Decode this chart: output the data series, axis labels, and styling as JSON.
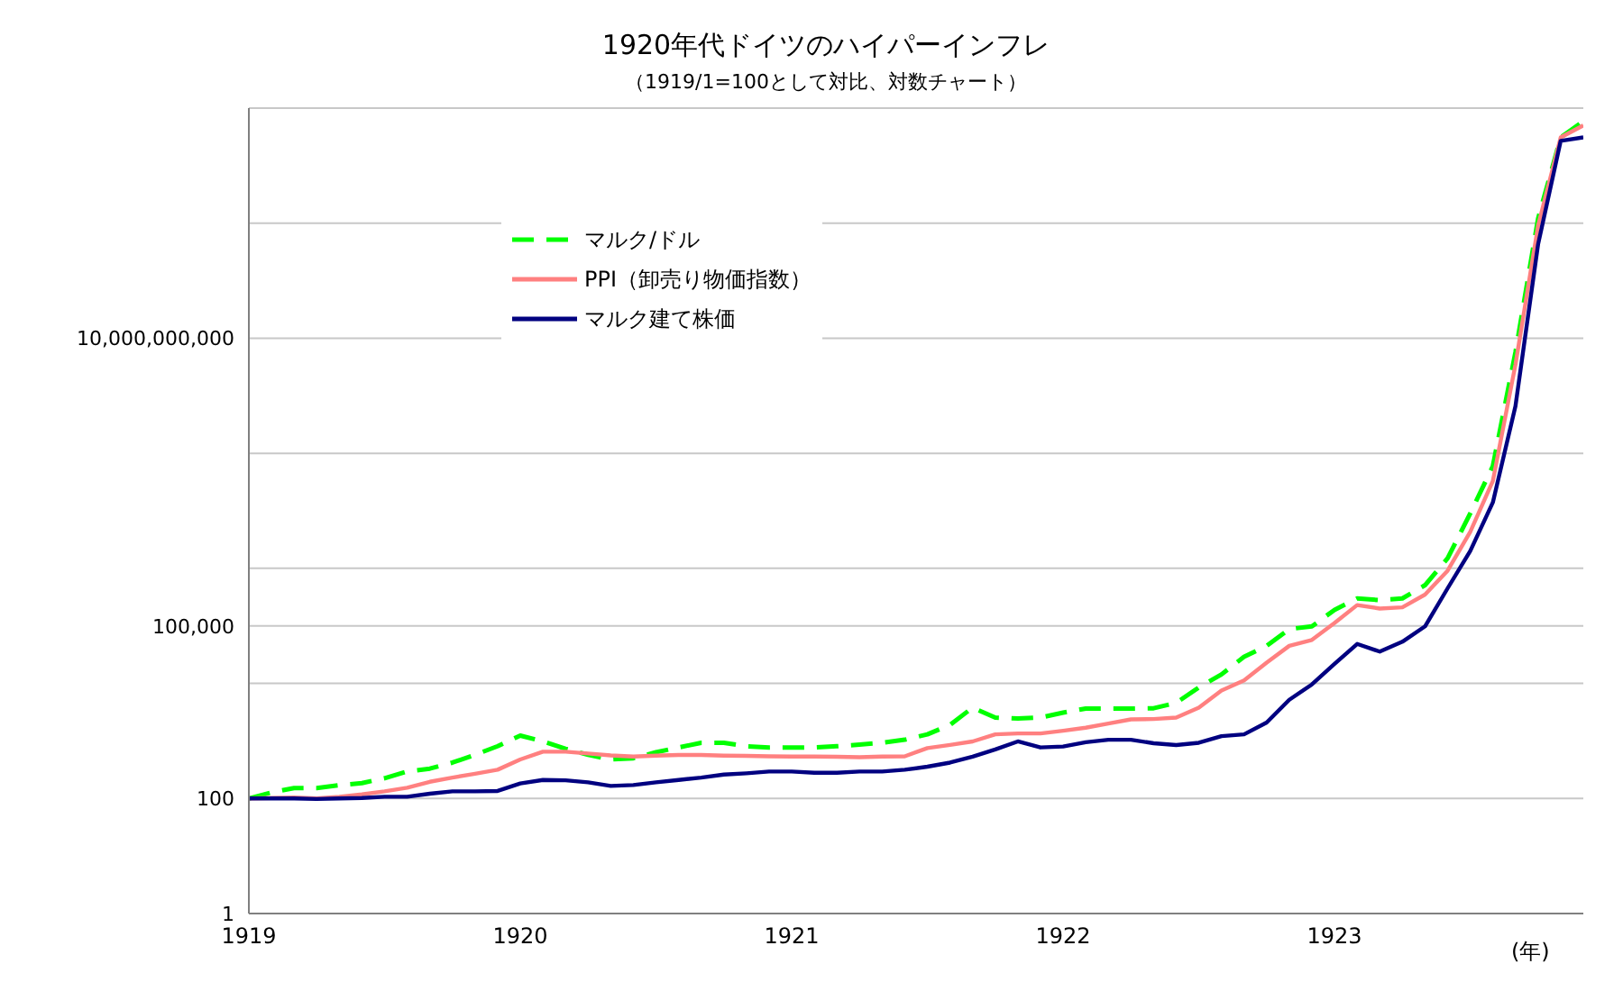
{
  "chart_data": {
    "type": "line",
    "title": "1920年代ドイツのハイパーインフレ",
    "subtitle": "（1919/1=100として対比、対数チャート）",
    "xlabel": "(年)",
    "x": [
      "1919-01",
      "1919-02",
      "1919-03",
      "1919-04",
      "1919-05",
      "1919-06",
      "1919-07",
      "1919-08",
      "1919-09",
      "1919-10",
      "1919-11",
      "1919-12",
      "1920-01",
      "1920-02",
      "1920-03",
      "1920-04",
      "1920-05",
      "1920-06",
      "1920-07",
      "1920-08",
      "1920-09",
      "1920-10",
      "1920-11",
      "1920-12",
      "1921-01",
      "1921-02",
      "1921-03",
      "1921-04",
      "1921-05",
      "1921-06",
      "1921-07",
      "1921-08",
      "1921-09",
      "1921-10",
      "1921-11",
      "1921-12",
      "1922-01",
      "1922-02",
      "1922-03",
      "1922-04",
      "1922-05",
      "1922-06",
      "1922-07",
      "1922-08",
      "1922-09",
      "1922-10",
      "1922-11",
      "1922-12",
      "1923-01",
      "1923-02",
      "1923-03",
      "1923-04",
      "1923-05",
      "1923-06",
      "1923-07",
      "1923-08",
      "1923-09",
      "1923-10",
      "1923-11",
      "1923-12"
    ],
    "series": [
      {
        "name": "マルク/ドル",
        "color": "#00ff00",
        "line_style": "dashed",
        "values": [
          100,
          127,
          152,
          152,
          170,
          185,
          225,
          294,
          330,
          420,
          575,
          810,
          1240,
          980,
          730,
          575,
          476,
          500,
          635,
          770,
          930,
          930,
          810,
          770,
          770,
          770,
          810,
          865,
          930,
          1050,
          1300,
          1900,
          3800,
          2550,
          2450,
          2550,
          3100,
          3650,
          3650,
          3650,
          3700,
          4600,
          8500,
          14300,
          29000,
          45000,
          88000,
          98000,
          190000,
          300000,
          280000,
          300000,
          510000,
          1500000,
          9000000,
          60000000,
          5700000000,
          1200000000000,
          31000000000000,
          59000000000000
        ]
      },
      {
        "name": "PPI（卸売り物価指数）",
        "color": "#ff8080",
        "line_style": "solid",
        "values": [
          100,
          102,
          104,
          100,
          107,
          118,
          133,
          154,
          195,
          231,
          268,
          316,
          476,
          650,
          650,
          605,
          560,
          535,
          555,
          570,
          570,
          555,
          550,
          541,
          535,
          535,
          530,
          520,
          535,
          541,
          750,
          850,
          980,
          1300,
          1350,
          1350,
          1500,
          1700,
          2000,
          2370,
          2400,
          2550,
          3800,
          7500,
          11300,
          23000,
          45000,
          57000,
          112000,
          230000,
          200000,
          210000,
          350000,
          910000,
          4300000,
          33000000,
          3500000000,
          900000000000,
          31000000000000,
          50000000000000
        ]
      },
      {
        "name": "マルク建て株価",
        "color": "#000080",
        "line_style": "solid",
        "values": [
          100,
          100,
          100,
          98,
          100,
          102,
          107,
          107,
          121,
          133,
          133,
          135,
          182,
          210,
          207,
          191,
          165,
          171,
          191,
          210,
          231,
          260,
          274,
          294,
          294,
          280,
          280,
          294,
          294,
          316,
          357,
          420,
          535,
          710,
          980,
          770,
          800,
          950,
          1050,
          1050,
          910,
          850,
          930,
          1210,
          1300,
          2090,
          5200,
          9600,
          21800,
          48500,
          35700,
          53000,
          98000,
          450000,
          2000000,
          14000000,
          660000000,
          430000000000,
          27000000000000,
          31000000000000
        ]
      }
    ],
    "xlim": [
      "1919-01",
      "1923-12"
    ],
    "xticks": [
      {
        "value": "1919-01",
        "label": "1919"
      },
      {
        "value": "1920-01",
        "label": "1920"
      },
      {
        "value": "1921-01",
        "label": "1921"
      },
      {
        "value": "1922-01",
        "label": "1922"
      },
      {
        "value": "1923-01",
        "label": "1923"
      }
    ],
    "ylim": [
      1,
      100000000000000
    ],
    "yticks": [
      1,
      100,
      {
        "value": 10000,
        "label": null
      },
      {
        "value": 100000,
        "label": "100,000"
      },
      {
        "value": 1000000,
        "label": null
      },
      {
        "value": 100000000,
        "label": null
      },
      {
        "value": 10000000000,
        "label": "10,000,000,000"
      },
      {
        "value": 1000000000000,
        "label": null
      },
      {
        "value": 100000000000000,
        "label": null
      }
    ],
    "log": "y",
    "grid": "y",
    "legend": "top left",
    "marker": "none"
  }
}
